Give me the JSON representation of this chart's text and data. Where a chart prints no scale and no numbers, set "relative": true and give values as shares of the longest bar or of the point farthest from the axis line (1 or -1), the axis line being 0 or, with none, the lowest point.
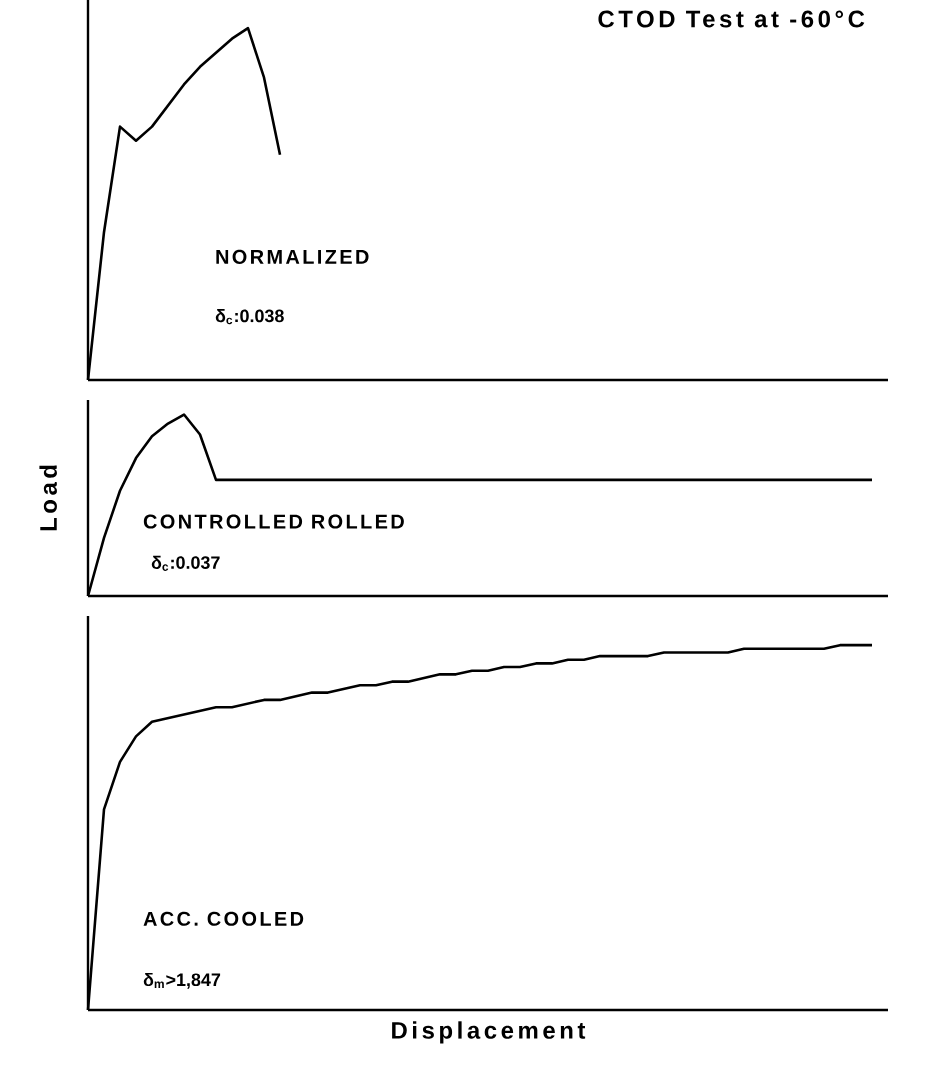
{
  "chart_data": [
    {
      "type": "line",
      "title": "CTOD Test at -60°C",
      "relative": true,
      "tick_labels": false,
      "categories": [
        null,
        null,
        null,
        null,
        null,
        null,
        null,
        null,
        null,
        null,
        null,
        null,
        null,
        null,
        null,
        null,
        null,
        null,
        null,
        null,
        null,
        null,
        null,
        null,
        null,
        null,
        null,
        null,
        null,
        null,
        null,
        null,
        null,
        null,
        null,
        null,
        null,
        null,
        null,
        null,
        null,
        null,
        null,
        null,
        null,
        null,
        null,
        null,
        null,
        null,
        null
      ],
      "annotations": [
        "NORMALIZED",
        "δ$_{c}$:0.038"
      ],
      "series": [
        {
          "color": "#000000",
          "values": [
            0,
            0.42,
            0.72,
            0.68,
            0.72,
            0.78,
            0.84,
            0.89,
            0.93,
            0.97,
            1,
            0.86,
            0.64,
            null,
            null,
            null,
            null,
            null,
            null,
            null,
            null,
            null,
            null,
            null,
            null,
            null,
            null,
            null,
            null,
            null,
            null,
            null,
            null,
            null,
            null,
            null,
            null,
            null,
            null,
            null,
            null,
            null,
            null,
            null,
            null,
            null,
            null,
            null,
            null,
            null,
            null
          ]
        }
      ]
    },
    {
      "type": "line",
      "ylabel": "Load",
      "relative": true,
      "tick_labels": false,
      "categories": [
        null,
        null,
        null,
        null,
        null,
        null,
        null,
        null,
        null,
        null,
        null,
        null,
        null,
        null,
        null,
        null,
        null,
        null,
        null,
        null,
        null,
        null,
        null,
        null,
        null,
        null,
        null,
        null,
        null,
        null,
        null,
        null,
        null,
        null,
        null,
        null,
        null,
        null,
        null,
        null,
        null,
        null,
        null,
        null,
        null,
        null,
        null,
        null,
        null,
        null,
        null
      ],
      "annotations": [
        "CONTROLLED ROLLED",
        "δ$_{c}$:0.037"
      ],
      "series": [
        {
          "color": "#000000",
          "values": [
            0,
            0.32,
            0.58,
            0.76,
            0.88,
            0.95,
            1,
            0.89,
            0.64,
            0.64,
            0.64,
            0.64,
            0.64,
            0.64,
            0.64,
            0.64,
            0.64,
            0.64,
            0.64,
            0.64,
            0.64,
            0.64,
            0.64,
            0.64,
            0.64,
            0.64,
            0.64,
            0.64,
            0.64,
            0.64,
            0.64,
            0.64,
            0.64,
            0.64,
            0.64,
            0.64,
            0.64,
            0.64,
            0.64,
            0.64,
            0.64,
            0.64,
            0.64,
            0.64,
            0.64,
            0.64,
            0.64,
            0.64,
            0.64,
            0.64,
            null
          ]
        }
      ]
    },
    {
      "type": "line",
      "xlabel": "Displacement",
      "relative": true,
      "tick_labels": false,
      "categories": [
        null,
        null,
        null,
        null,
        null,
        null,
        null,
        null,
        null,
        null,
        null,
        null,
        null,
        null,
        null,
        null,
        null,
        null,
        null,
        null,
        null,
        null,
        null,
        null,
        null,
        null,
        null,
        null,
        null,
        null,
        null,
        null,
        null,
        null,
        null,
        null,
        null,
        null,
        null,
        null,
        null,
        null,
        null,
        null,
        null,
        null,
        null,
        null,
        null,
        null,
        null
      ],
      "annotations": [
        "ACC. COOLED",
        "δ$_{m}$>1,847"
      ],
      "series": [
        {
          "color": "#000000",
          "values": [
            0,
            0.55,
            0.68,
            0.75,
            0.79,
            0.8,
            0.81,
            0.82,
            0.83,
            0.83,
            0.84,
            0.85,
            0.85,
            0.86,
            0.87,
            0.87,
            0.88,
            0.89,
            0.89,
            0.9,
            0.9,
            0.91,
            0.92,
            0.92,
            0.93,
            0.93,
            0.94,
            0.94,
            0.95,
            0.95,
            0.96,
            0.96,
            0.97,
            0.97,
            0.97,
            0.97,
            0.98,
            0.98,
            0.98,
            0.98,
            0.98,
            0.99,
            0.99,
            0.99,
            0.99,
            0.99,
            0.99,
            1,
            1,
            1,
            null
          ]
        }
      ]
    }
  ]
}
